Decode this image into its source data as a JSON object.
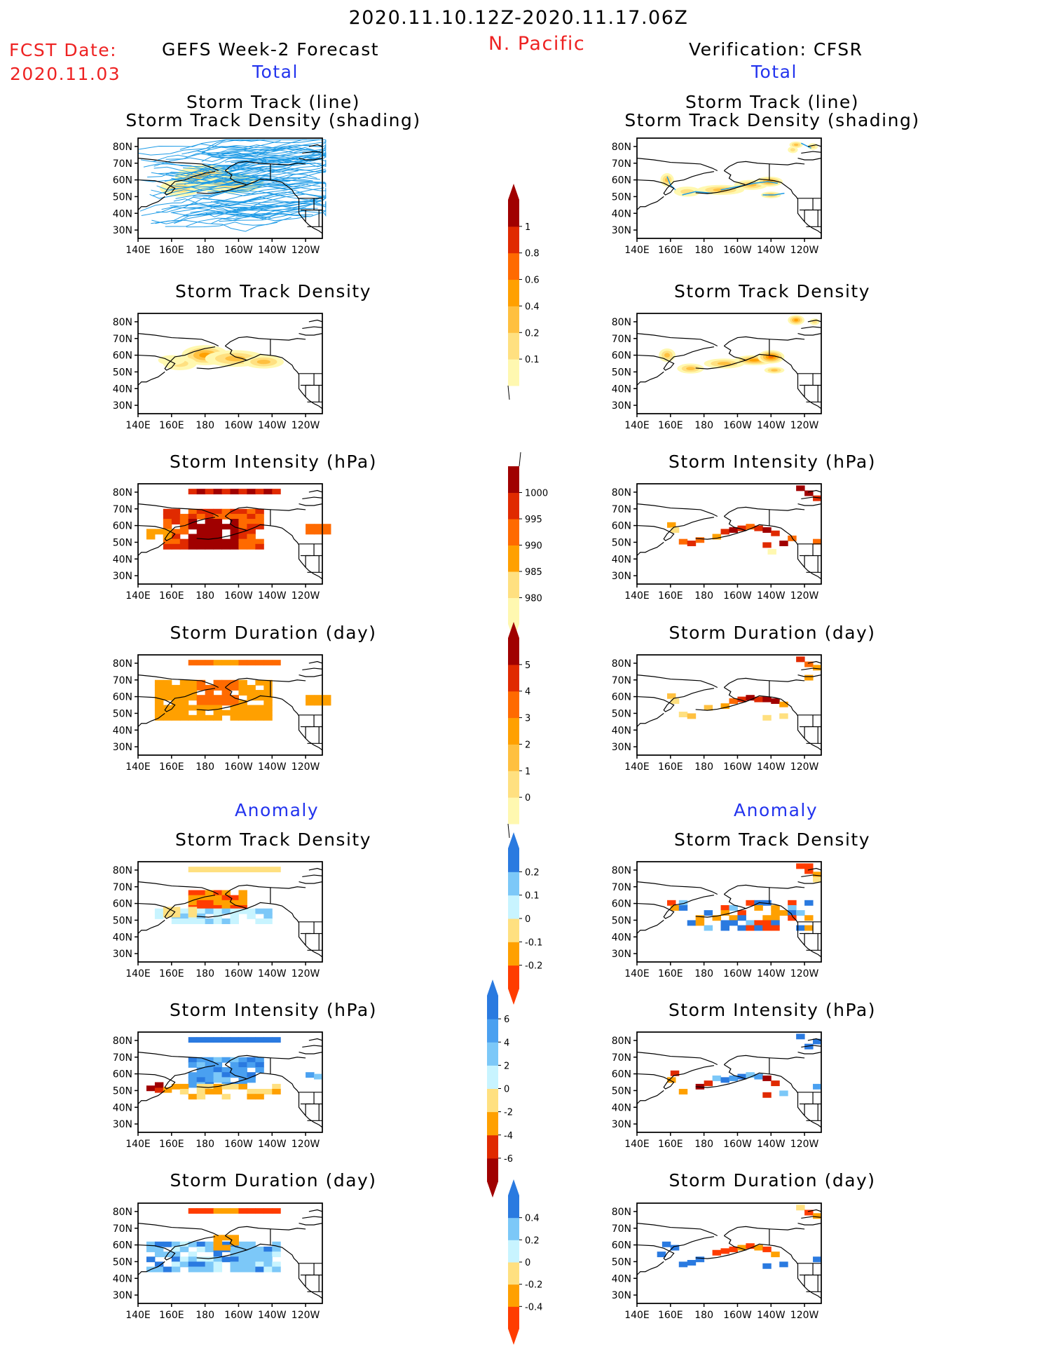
{
  "header": {
    "time_range": "2020.11.10.12Z-2020.11.17.06Z",
    "region": "N. Pacific",
    "fcst_label": "FCST Date:",
    "fcst_date": "2020.11.03",
    "left_title": "GEFS Week-2 Forecast",
    "right_title": "Verification: CFSR",
    "total_label": "Total",
    "anomaly_label": "Anomaly"
  },
  "panel_titles": {
    "track_line": "Storm Track (line)",
    "track_density_shading": "Storm Track Density (shading)",
    "track_density": "Storm Track Density",
    "intensity": "Storm Intensity (hPa)",
    "duration": "Storm Duration (day)"
  },
  "colors": {
    "track_line": "#1e9be6",
    "coast": "#000000",
    "accent_red": "#ee2222",
    "accent_blue": "#2233ee"
  },
  "chart_data": [
    {
      "type": "heatmap",
      "name_printed": "Storm Track Density",
      "xlabel": "",
      "ylabel": "",
      "x_ticks": [
        "140E",
        "160E",
        "180",
        "160W",
        "140W",
        "120W"
      ],
      "y_ticks": [
        "80N",
        "70N",
        "60N",
        "50N",
        "40N",
        "30N"
      ],
      "colorbar": {
        "levels": [
          "0.1",
          "0.2",
          "0.4",
          "0.6",
          "0.8",
          "1"
        ],
        "colors": [
          "#fff8b0",
          "#ffe080",
          "#ffc040",
          "#ffa000",
          "#ff6a00",
          "#e02a00",
          "#a00000"
        ]
      }
    },
    {
      "type": "heatmap",
      "name_printed": "Storm Intensity (hPa)",
      "colorbar": {
        "levels": [
          "1000",
          "995",
          "990",
          "985",
          "980"
        ],
        "colors": [
          "#fff8b0",
          "#ffe080",
          "#ffa000",
          "#ff6a00",
          "#e02a00",
          "#a00000"
        ]
      }
    },
    {
      "type": "heatmap",
      "name_printed": "Storm Duration (day)",
      "colorbar": {
        "levels": [
          "0",
          "1",
          "2",
          "3",
          "4",
          "5"
        ],
        "colors": [
          "#fff8b0",
          "#ffe080",
          "#ffc040",
          "#ffa000",
          "#ff6a00",
          "#e02a00",
          "#a00000"
        ]
      }
    },
    {
      "type": "heatmap",
      "name_printed": "Storm Track Density",
      "section": "Anomaly",
      "colorbar": {
        "levels": [
          "0.2",
          "0.1",
          "0",
          "-0.1",
          "-0.2"
        ],
        "colors": [
          "#ff3c00",
          "#ffa000",
          "#ffe080",
          "#c8f4ff",
          "#7cc8f8",
          "#2a7ae0"
        ]
      }
    },
    {
      "type": "heatmap",
      "name_printed": "Storm Intensity (hPa)",
      "section": "Anomaly",
      "colorbar": {
        "levels": [
          "6",
          "4",
          "2",
          "0",
          "-2",
          "-4",
          "-6"
        ],
        "colors": [
          "#a00000",
          "#e02a00",
          "#ffa000",
          "#ffe080",
          "#c8f4ff",
          "#7cc8f8",
          "#4aa0f0",
          "#2a7ae0"
        ]
      }
    },
    {
      "type": "heatmap",
      "name_printed": "Storm Duration (day)",
      "section": "Anomaly",
      "colorbar": {
        "levels": [
          "0.4",
          "0.2",
          "0",
          "-0.2",
          "-0.4"
        ],
        "colors": [
          "#ff3c00",
          "#ffa000",
          "#ffe080",
          "#c8f4ff",
          "#7cc8f8",
          "#2a7ae0"
        ]
      }
    }
  ]
}
